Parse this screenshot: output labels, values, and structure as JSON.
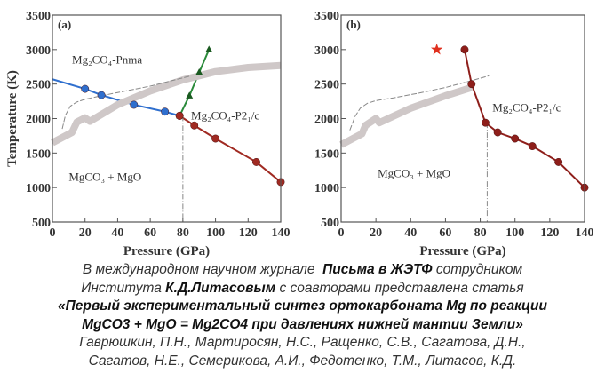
{
  "chart_data": [
    {
      "type": "line",
      "panel_label": "(a)",
      "xlabel": "Pressure (GPa)",
      "ylabel": "Temperature (K)",
      "xlim": [
        0,
        140
      ],
      "ylim": [
        500,
        3500
      ],
      "xticks": [
        0,
        20,
        40,
        60,
        80,
        100,
        120,
        140
      ],
      "yticks": [
        500,
        1000,
        1500,
        2000,
        2500,
        3000,
        3500
      ],
      "annotations": [
        {
          "text": "Mg₂CO₄-Pnma",
          "x": 12,
          "y": 2800
        },
        {
          "text": "Mg₂CO₄-P2₁/c",
          "x": 85,
          "y": 1990
        },
        {
          "text": "MgCO₃ + MgO",
          "x": 10,
          "y": 1100
        }
      ],
      "series": [
        {
          "name": "Pnma-P21c boundary",
          "color": "#2f6fce",
          "marker": "circle",
          "x": [
            0,
            20,
            30,
            50,
            69,
            78
          ],
          "y": [
            2570,
            2430,
            2340,
            2200,
            2100,
            2040
          ],
          "marker_from": 1
        },
        {
          "name": "Pnma melting",
          "color": "#2a8a3a",
          "marker": "triangle",
          "x": [
            78,
            84,
            90,
            96
          ],
          "y": [
            2040,
            2330,
            2670,
            3000
          ]
        },
        {
          "name": "P21c decomposition",
          "color": "#a02a22",
          "marker": "circle",
          "x": [
            78,
            87,
            100,
            125,
            140
          ],
          "y": [
            2040,
            1900,
            1710,
            1370,
            1080
          ]
        },
        {
          "name": "geotherm band",
          "color": "#cfc8c8",
          "style": "band",
          "x": [
            0,
            12,
            15,
            20,
            23,
            40,
            60,
            80,
            100,
            120,
            140
          ],
          "y": [
            1650,
            1800,
            1950,
            2010,
            1960,
            2200,
            2400,
            2560,
            2680,
            2740,
            2770
          ]
        },
        {
          "name": "dashed curve",
          "color": "#888888",
          "style": "dashed",
          "x": [
            6,
            8,
            11,
            15,
            20,
            30,
            45,
            60,
            75,
            85
          ],
          "y": [
            1850,
            2050,
            2180,
            2240,
            2280,
            2330,
            2400,
            2470,
            2560,
            2620
          ]
        },
        {
          "name": "transition pressure",
          "color": "#888888",
          "style": "dashdot",
          "x": [
            80,
            80
          ],
          "y": [
            2040,
            500
          ]
        }
      ]
    },
    {
      "type": "line",
      "panel_label": "(b)",
      "xlabel": "Pressure (GPa)",
      "ylabel": "",
      "xlim": [
        0,
        140
      ],
      "ylim": [
        500,
        3500
      ],
      "xticks": [
        0,
        20,
        40,
        60,
        80,
        100,
        120,
        140
      ],
      "yticks": [
        500,
        1000,
        1500,
        2000,
        2500,
        3000,
        3500
      ],
      "annotations": [
        {
          "text": "Mg₂CO₄-P2₁/c",
          "x": 87,
          "y": 2100
        },
        {
          "text": "MgCO₃ + MgO",
          "x": 21,
          "y": 1150
        }
      ],
      "star": {
        "x": 55,
        "y": 3000,
        "color": "#e0301e"
      },
      "series": [
        {
          "name": "P21c decomposition",
          "color": "#8e1e1a",
          "marker": "circle",
          "x": [
            71,
            75,
            83,
            90,
            100,
            110,
            125,
            140
          ],
          "y": [
            3000,
            2500,
            1940,
            1800,
            1710,
            1600,
            1370,
            1000
          ]
        },
        {
          "name": "geotherm band",
          "color": "#cfc8c8",
          "style": "band",
          "x": [
            0,
            12,
            14,
            20,
            22,
            40,
            60,
            75
          ],
          "y": [
            1620,
            1780,
            1900,
            2000,
            1940,
            2150,
            2330,
            2450
          ]
        },
        {
          "name": "dashed curve",
          "color": "#888888",
          "style": "dashed",
          "x": [
            5,
            8,
            11,
            15,
            20,
            30,
            45,
            60,
            75,
            85
          ],
          "y": [
            1830,
            2030,
            2150,
            2220,
            2260,
            2300,
            2370,
            2450,
            2550,
            2620
          ]
        },
        {
          "name": "transition pressure",
          "color": "#888888",
          "style": "dashdot",
          "x": [
            84,
            84
          ],
          "y": [
            1940,
            500
          ]
        }
      ]
    }
  ],
  "caption": {
    "lines": [
      [
        {
          "t": "В международном научном журнале  ",
          "b": false
        },
        {
          "t": "Письма в ЖЭТФ",
          "b": true
        },
        {
          "t": " сотрудником",
          "b": false
        }
      ],
      [
        {
          "t": "Института ",
          "b": false
        },
        {
          "t": "К.Д.Литасовым",
          "b": true
        },
        {
          "t": " с соавторами представлена статья",
          "b": false
        }
      ],
      [
        {
          "t": "«Первый экспериментальный синтез ортокарбоната Mg по реакции",
          "b": true
        }
      ],
      [
        {
          "t": "MgCO3 + MgO = Mg2CO4 при давлениях нижней мантии Земли»",
          "b": true
        }
      ],
      [
        {
          "t": "Гаврюшкин, П.Н., Мартиросян, Н.С., Ращенко, С.В., Сагатова, Д.Н.,",
          "b": false
        }
      ],
      [
        {
          "t": "Сагатов, Н.Е., Семерикова, А.И., Федотенко, Т.М., Литасов, К.Д.",
          "b": false
        }
      ]
    ]
  }
}
